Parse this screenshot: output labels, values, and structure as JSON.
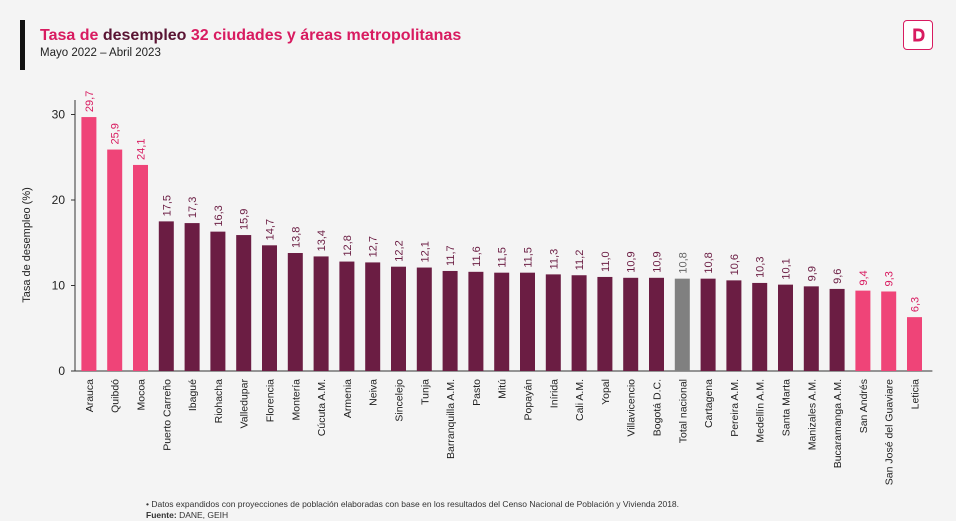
{
  "header": {
    "title_part1": "Tasa de ",
    "title_part2": "desempleo",
    "title_part3": " 32 ciudades y áreas metropolitanas",
    "subtitle": "Mayo 2022 – Abril 2023"
  },
  "colors": {
    "highlight": "#ef4478",
    "regular": "#6b1d43",
    "national": "#808080",
    "label_highlight": "#d81b60",
    "label_regular": "#6b1d43",
    "label_national": "#666666",
    "accent_bar": "#111111"
  },
  "logo": {
    "icon": "dane-logo-icon"
  },
  "footer": {
    "note": "• Datos expandidos con proyecciones de población elaboradas con base en los resultados del Censo Nacional de Población y Vivienda 2018.",
    "source_label": "Fuente:",
    "source_text": " DANE, GEIH"
  },
  "chart_data": {
    "type": "bar",
    "ylabel": "Tasa de desempleo (%)",
    "ylim": [
      0,
      32
    ],
    "yticks": [
      0,
      10,
      20,
      30
    ],
    "grid": false,
    "categories": [
      "Arauca",
      "Quibdó",
      "Mocoa",
      "Puerto Carreño",
      "Ibagué",
      "Riohacha",
      "Valledupar",
      "Florencia",
      "Montería",
      "Cúcuta A.M.",
      "Armenia",
      "Neiva",
      "Sincelejo",
      "Tunja",
      "Barranquilla A.M.",
      "Pasto",
      "Mitú",
      "Popayán",
      "Inírida",
      "Cali A.M.",
      "Yopal",
      "Villavicencio",
      "Bogotá D.C.",
      "Total nacional",
      "Cartagena",
      "Pereira A.M.",
      "Medellín A.M.",
      "Santa Marta",
      "Manizales A.M.",
      "Bucaramanga A.M.",
      "San Andrés",
      "San José del Guaviare",
      "Leticia"
    ],
    "values": [
      29.7,
      25.9,
      24.1,
      17.5,
      17.3,
      16.3,
      15.9,
      14.7,
      13.8,
      13.4,
      12.8,
      12.7,
      12.2,
      12.1,
      11.7,
      11.6,
      11.5,
      11.5,
      11.3,
      11.2,
      11.0,
      10.9,
      10.9,
      10.8,
      10.8,
      10.6,
      10.3,
      10.1,
      9.9,
      9.6,
      9.4,
      9.3,
      6.3
    ],
    "value_labels": [
      "29,7",
      "25,9",
      "24,1",
      "17,5",
      "17,3",
      "16,3",
      "15,9",
      "14,7",
      "13,8",
      "13,4",
      "12,8",
      "12,7",
      "12,2",
      "12,1",
      "11,7",
      "11,6",
      "11,5",
      "11,5",
      "11,3",
      "11,2",
      "11,0",
      "10,9",
      "10,9",
      "10,8",
      "10,8",
      "10,6",
      "10,3",
      "10,1",
      "9,9",
      "9,6",
      "9,4",
      "9,3",
      "6,3"
    ],
    "highlight_categories": [
      "Arauca",
      "Quibdó",
      "Mocoa",
      "San Andrés",
      "San José del Guaviare",
      "Leticia"
    ],
    "national_category": "Total nacional"
  }
}
